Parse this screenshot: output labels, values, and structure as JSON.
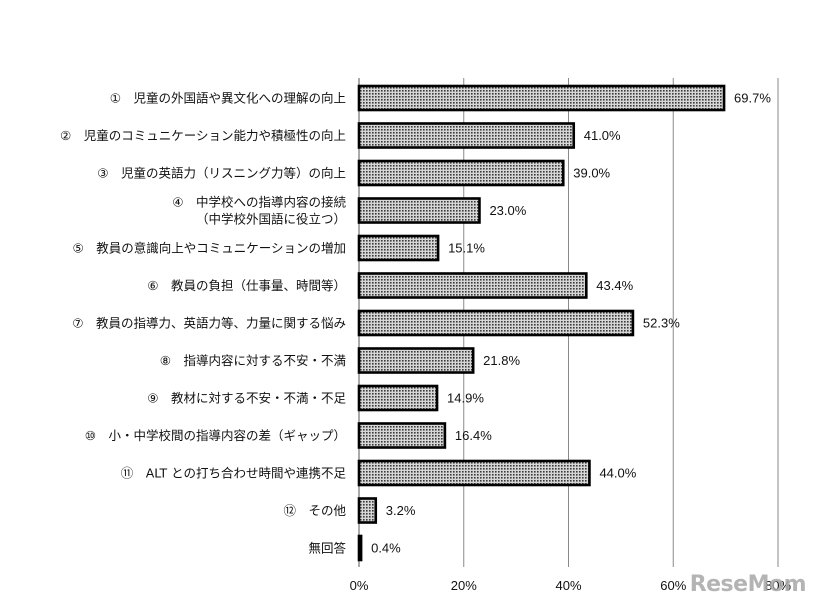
{
  "chart_data": {
    "type": "bar",
    "orientation": "horizontal",
    "categories": [
      [
        "①　児童の外国語や異文化への理解の向上"
      ],
      [
        "②　児童のコミュニケーション能力や積極性の向上"
      ],
      [
        "③　児童の英語力（リスニング力等）の向上"
      ],
      [
        "④　中学校への指導内容の接続",
        "（中学校外国語に役立つ）"
      ],
      [
        "⑤　教員の意識向上やコミュニケーションの増加"
      ],
      [
        "⑥　教員の負担（仕事量、時間等）"
      ],
      [
        "⑦　教員の指導力、英語力等、力量に関する悩み"
      ],
      [
        "⑧　指導内容に対する不安・不満"
      ],
      [
        "⑨　教材に対する不安・不満・不足"
      ],
      [
        "⑩　小・中学校間の指導内容の差（ギャップ）"
      ],
      [
        "⑪　ALT との打ち合わせ時間や連携不足"
      ],
      [
        "⑫　その他"
      ],
      [
        "無回答"
      ]
    ],
    "values": [
      69.7,
      41.0,
      39.0,
      23.0,
      15.1,
      43.4,
      52.3,
      21.8,
      14.9,
      16.4,
      44.0,
      3.2,
      0.4
    ],
    "value_labels": [
      "69.7%",
      "41.0%",
      "39.0%",
      "23.0%",
      "15.1%",
      "43.4%",
      "52.3%",
      "21.8%",
      "14.9%",
      "16.4%",
      "44.0%",
      "3.2%",
      "0.4%"
    ],
    "xlim": [
      0,
      80
    ],
    "xticks": [
      0,
      20,
      40,
      60,
      80
    ],
    "xtick_labels": [
      "0%",
      "20%",
      "40%",
      "60%",
      "80%"
    ],
    "grid": true,
    "bar_fill": "#8f8f8f",
    "bar_edge": "#000000"
  },
  "watermark": "ReseMom"
}
